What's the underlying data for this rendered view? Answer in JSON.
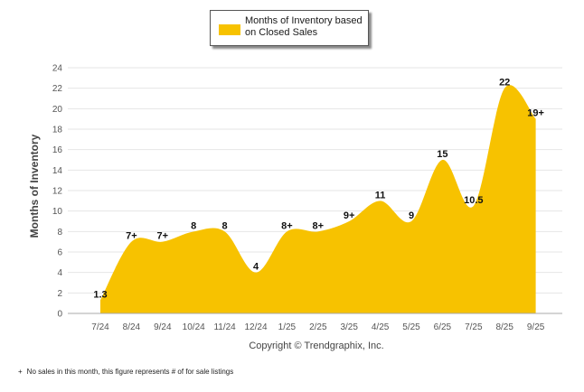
{
  "legend": {
    "label": "Months of Inventory based on Closed Sales"
  },
  "copyright": "Copyright © Trendgraphix, Inc.",
  "footnote": {
    "mark": "+",
    "text": "No sales in this month, this figure represents # of for sale listings"
  },
  "colors": {
    "fill": "#f7c200",
    "grid": "#e6e6e6",
    "axis": "#aaaaaa"
  },
  "chart_data": {
    "type": "area",
    "title": "",
    "xlabel": "",
    "ylabel": "Months of Inventory",
    "ylim": [
      0,
      24
    ],
    "yticks": [
      0,
      2,
      4,
      6,
      8,
      10,
      12,
      14,
      16,
      18,
      20,
      22,
      24
    ],
    "categories": [
      "7/24",
      "8/24",
      "9/24",
      "10/24",
      "11/24",
      "12/24",
      "1/25",
      "2/25",
      "3/25",
      "4/25",
      "5/25",
      "6/25",
      "7/25",
      "8/25",
      "9/25"
    ],
    "series": [
      {
        "name": "Months of Inventory based on Closed Sales",
        "values": [
          1.3,
          7,
          7,
          8,
          8,
          4,
          8,
          8,
          9,
          11,
          9,
          15,
          10.5,
          22,
          19
        ],
        "labels": [
          "1.3",
          "7+",
          "7+",
          "8",
          "8",
          "4",
          "8+",
          "8+",
          "9+",
          "11",
          "9",
          "15",
          "10.5",
          "22",
          "19+"
        ]
      }
    ],
    "legend_position": "top-center",
    "grid": true
  }
}
